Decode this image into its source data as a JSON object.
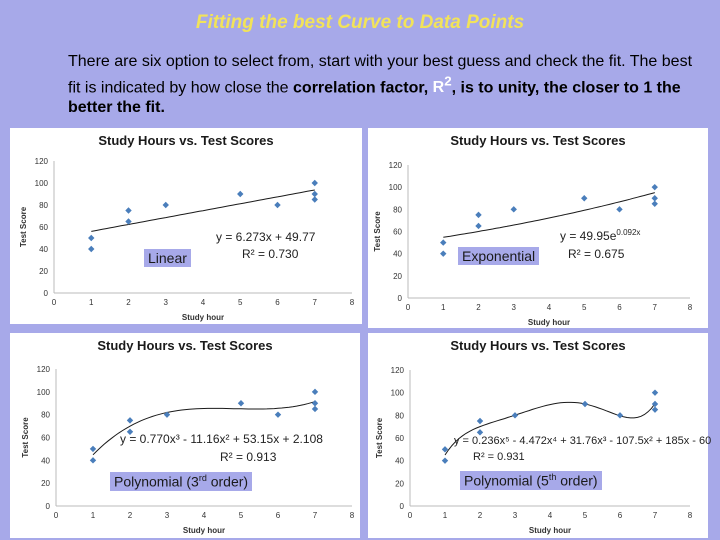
{
  "slide": {
    "title": "Fitting the best Curve to Data Points",
    "intro_text": "There are six option to select from, start with your best guess and check the fit. The best fit is indicated by how close the",
    "intro_bold_1": "correlation factor,",
    "intro_r2": "R",
    "intro_sup": "2",
    "intro_bold_2": ", is to unity, the closer to 1 the better the fit."
  },
  "fit_labels": {
    "linear": "Linear",
    "exponential": "Exponential",
    "poly3_prefix": "Polynomial (3",
    "poly3_sup": "rd",
    "poly3_suffix": " order)",
    "poly5_prefix": "Polynomial (5",
    "poly5_sup": "th",
    "poly5_suffix": " order)"
  },
  "colors": {
    "background": "#a7a9e9",
    "title": "#f2e35a",
    "marker": "#4a7ebb",
    "trend": "#1a1a1a"
  },
  "chart_data": [
    {
      "type": "scatter",
      "title": "Study Hours vs. Test Scores",
      "xlabel": "Study hour",
      "ylabel": "Test Score",
      "xlim": [
        0,
        8
      ],
      "ylim": [
        0,
        120
      ],
      "xticks": [
        0,
        1,
        2,
        3,
        4,
        5,
        6,
        7,
        8
      ],
      "yticks": [
        0,
        20,
        40,
        60,
        80,
        100,
        120
      ],
      "points": [
        [
          1,
          50
        ],
        [
          1,
          40
        ],
        [
          2,
          75
        ],
        [
          2,
          65
        ],
        [
          3,
          80
        ],
        [
          5,
          90
        ],
        [
          6,
          80
        ],
        [
          7,
          100
        ],
        [
          7,
          90
        ],
        [
          7,
          85
        ]
      ],
      "trendline": {
        "kind": "linear",
        "slope": 6.273,
        "intercept": 49.77
      },
      "equation": "y = 6.273x + 49.77",
      "r2": "R² = 0.730"
    },
    {
      "type": "scatter",
      "title": "Study Hours vs. Test Scores",
      "xlabel": "Study hour",
      "ylabel": "Test Score",
      "xlim": [
        0,
        8
      ],
      "ylim": [
        0,
        120
      ],
      "xticks": [
        0,
        1,
        2,
        3,
        4,
        5,
        6,
        7,
        8
      ],
      "yticks": [
        0,
        20,
        40,
        60,
        80,
        100,
        120
      ],
      "points": [
        [
          1,
          50
        ],
        [
          1,
          40
        ],
        [
          2,
          75
        ],
        [
          2,
          65
        ],
        [
          3,
          80
        ],
        [
          5,
          90
        ],
        [
          6,
          80
        ],
        [
          7,
          100
        ],
        [
          7,
          90
        ],
        [
          7,
          85
        ]
      ],
      "trendline": {
        "kind": "exponential",
        "a": 49.95,
        "b": 0.092
      },
      "equation": "y = 49.95e",
      "equation_sup": "0.092x",
      "r2": "R² = 0.675"
    },
    {
      "type": "scatter",
      "title": "Study Hours vs. Test Scores",
      "xlabel": "Study hour",
      "ylabel": "Test Score",
      "xlim": [
        0,
        8
      ],
      "ylim": [
        0,
        120
      ],
      "xticks": [
        0,
        1,
        2,
        3,
        4,
        5,
        6,
        7,
        8
      ],
      "yticks": [
        0,
        20,
        40,
        60,
        80,
        100,
        120
      ],
      "points": [
        [
          1,
          50
        ],
        [
          1,
          40
        ],
        [
          2,
          75
        ],
        [
          2,
          65
        ],
        [
          3,
          80
        ],
        [
          5,
          90
        ],
        [
          6,
          80
        ],
        [
          7,
          100
        ],
        [
          7,
          90
        ],
        [
          7,
          85
        ]
      ],
      "trendline": {
        "kind": "poly3",
        "coeffs": [
          2.108,
          53.15,
          -11.16,
          0.77
        ]
      },
      "equation": "y = 0.770x³ - 11.16x² + 53.15x + 2.108",
      "r2": "R² = 0.913"
    },
    {
      "type": "scatter",
      "title": "Study Hours vs. Test Scores",
      "xlabel": "Study hour",
      "ylabel": "Test Score",
      "xlim": [
        0,
        8
      ],
      "ylim": [
        0,
        120
      ],
      "xticks": [
        0,
        1,
        2,
        3,
        4,
        5,
        6,
        7,
        8
      ],
      "yticks": [
        0,
        20,
        40,
        60,
        80,
        100,
        120
      ],
      "points": [
        [
          1,
          50
        ],
        [
          1,
          40
        ],
        [
          2,
          75
        ],
        [
          2,
          65
        ],
        [
          3,
          80
        ],
        [
          5,
          90
        ],
        [
          6,
          80
        ],
        [
          7,
          100
        ],
        [
          7,
          90
        ],
        [
          7,
          85
        ]
      ],
      "trendline": {
        "kind": "poly5",
        "coeffs": [
          -60,
          185,
          -107.5,
          31.76,
          -4.472,
          0.236
        ]
      },
      "equation": "y = 0.236x⁵ - 4.472x⁴ + 31.76x³ - 107.5x² + 185x - 60",
      "r2": "R² = 0.931"
    }
  ]
}
